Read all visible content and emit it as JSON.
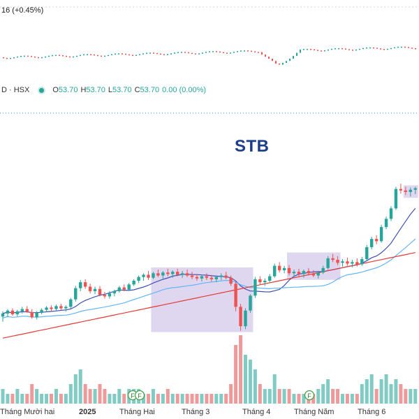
{
  "top_index": {
    "change_text": "16 (+0.45%)"
  },
  "legend": {
    "symbol": "D · HSX",
    "o_label": "O",
    "o_value": "53.70",
    "h_label": "H",
    "h_value": "53.70",
    "l_label": "L",
    "l_value": "53.70",
    "c_label": "C",
    "c_value": "53.70",
    "change": "0.00 (0.00%)"
  },
  "chart_data": {
    "type": "candlestick",
    "title": "STB",
    "x_tick_labels": [
      "Tháng Mười hai",
      "2025",
      "Tháng Hai",
      "Tháng 3",
      "Tháng 4",
      "Tháng Năm",
      "Tháng 6"
    ],
    "event_markers": [
      "F",
      "F",
      "F"
    ],
    "colors": {
      "up": "#26a69a",
      "down": "#ef5350",
      "ma_short": "#3f51b5",
      "ma_mid": "#64b5f6",
      "ma_long": "#e53935",
      "highlight": "#d1c4e9"
    },
    "price_range_estimate": [
      31,
      56
    ],
    "candles": [
      {
        "o": 36.5,
        "h": 37.2,
        "l": 35.8,
        "c": 36.9
      },
      {
        "o": 36.9,
        "h": 37.5,
        "l": 36.4,
        "c": 37.3
      },
      {
        "o": 37.3,
        "h": 37.6,
        "l": 36.6,
        "c": 36.8
      },
      {
        "o": 36.8,
        "h": 37.4,
        "l": 36.5,
        "c": 37.2
      },
      {
        "o": 37.2,
        "h": 37.8,
        "l": 36.9,
        "c": 37.5
      },
      {
        "o": 37.5,
        "h": 37.9,
        "l": 37.0,
        "c": 37.1
      },
      {
        "o": 37.1,
        "h": 37.5,
        "l": 36.2,
        "c": 36.4
      },
      {
        "o": 36.4,
        "h": 37.2,
        "l": 36.1,
        "c": 37.0
      },
      {
        "o": 37.0,
        "h": 37.6,
        "l": 36.8,
        "c": 37.4
      },
      {
        "o": 37.4,
        "h": 37.9,
        "l": 37.1,
        "c": 37.7
      },
      {
        "o": 37.7,
        "h": 38.0,
        "l": 37.2,
        "c": 37.5
      },
      {
        "o": 37.5,
        "h": 38.1,
        "l": 37.3,
        "c": 37.9
      },
      {
        "o": 37.9,
        "h": 38.2,
        "l": 37.4,
        "c": 37.6
      },
      {
        "o": 37.6,
        "h": 38.0,
        "l": 37.2,
        "c": 37.8
      },
      {
        "o": 37.8,
        "h": 39.0,
        "l": 37.6,
        "c": 38.8
      },
      {
        "o": 38.8,
        "h": 40.6,
        "l": 38.5,
        "c": 40.3
      },
      {
        "o": 40.3,
        "h": 41.4,
        "l": 39.9,
        "c": 41.1
      },
      {
        "o": 41.1,
        "h": 41.5,
        "l": 40.2,
        "c": 40.5
      },
      {
        "o": 40.5,
        "h": 40.9,
        "l": 39.6,
        "c": 39.9
      },
      {
        "o": 39.9,
        "h": 40.5,
        "l": 39.5,
        "c": 40.2
      },
      {
        "o": 40.2,
        "h": 40.6,
        "l": 39.2,
        "c": 39.4
      },
      {
        "o": 39.4,
        "h": 39.8,
        "l": 38.9,
        "c": 39.2
      },
      {
        "o": 39.2,
        "h": 39.9,
        "l": 38.9,
        "c": 39.6
      },
      {
        "o": 39.6,
        "h": 40.1,
        "l": 39.2,
        "c": 39.9
      },
      {
        "o": 39.9,
        "h": 40.6,
        "l": 39.7,
        "c": 40.4
      },
      {
        "o": 40.4,
        "h": 40.8,
        "l": 39.9,
        "c": 40.1
      },
      {
        "o": 40.1,
        "h": 41.0,
        "l": 40.0,
        "c": 40.8
      },
      {
        "o": 40.8,
        "h": 41.5,
        "l": 40.6,
        "c": 41.3
      },
      {
        "o": 41.3,
        "h": 42.0,
        "l": 41.0,
        "c": 41.8
      },
      {
        "o": 41.8,
        "h": 42.3,
        "l": 41.3,
        "c": 42.1
      },
      {
        "o": 42.1,
        "h": 42.6,
        "l": 41.4,
        "c": 41.7
      },
      {
        "o": 41.7,
        "h": 42.5,
        "l": 41.5,
        "c": 42.3
      },
      {
        "o": 42.3,
        "h": 42.8,
        "l": 41.8,
        "c": 42.0
      },
      {
        "o": 42.0,
        "h": 42.6,
        "l": 41.6,
        "c": 42.4
      },
      {
        "o": 42.4,
        "h": 42.9,
        "l": 41.9,
        "c": 42.2
      },
      {
        "o": 42.2,
        "h": 42.7,
        "l": 41.7,
        "c": 42.5
      },
      {
        "o": 42.5,
        "h": 42.9,
        "l": 41.9,
        "c": 42.1
      },
      {
        "o": 42.1,
        "h": 42.6,
        "l": 41.7,
        "c": 42.3
      },
      {
        "o": 42.3,
        "h": 42.8,
        "l": 41.8,
        "c": 42.0
      },
      {
        "o": 42.0,
        "h": 42.5,
        "l": 41.5,
        "c": 41.8
      },
      {
        "o": 41.8,
        "h": 42.2,
        "l": 41.3,
        "c": 41.6
      },
      {
        "o": 41.6,
        "h": 42.0,
        "l": 41.2,
        "c": 41.9
      },
      {
        "o": 41.9,
        "h": 42.3,
        "l": 41.4,
        "c": 41.7
      },
      {
        "o": 41.7,
        "h": 42.1,
        "l": 41.2,
        "c": 41.5
      },
      {
        "o": 41.5,
        "h": 42.0,
        "l": 41.1,
        "c": 41.8
      },
      {
        "o": 41.8,
        "h": 42.3,
        "l": 41.4,
        "c": 42.0
      },
      {
        "o": 42.0,
        "h": 42.5,
        "l": 41.5,
        "c": 41.7
      },
      {
        "o": 41.7,
        "h": 42.0,
        "l": 40.6,
        "c": 40.9
      },
      {
        "o": 40.9,
        "h": 41.2,
        "l": 37.2,
        "c": 37.8
      },
      {
        "o": 37.8,
        "h": 38.2,
        "l": 34.6,
        "c": 35.2
      },
      {
        "o": 35.2,
        "h": 37.6,
        "l": 34.8,
        "c": 37.3
      },
      {
        "o": 37.3,
        "h": 39.5,
        "l": 37.0,
        "c": 39.3
      },
      {
        "o": 39.3,
        "h": 41.8,
        "l": 39.0,
        "c": 41.5
      },
      {
        "o": 41.5,
        "h": 41.9,
        "l": 40.8,
        "c": 41.1
      },
      {
        "o": 41.1,
        "h": 41.6,
        "l": 40.6,
        "c": 41.3
      },
      {
        "o": 41.3,
        "h": 42.2,
        "l": 41.0,
        "c": 41.9
      },
      {
        "o": 41.9,
        "h": 43.6,
        "l": 41.7,
        "c": 43.3
      },
      {
        "o": 43.3,
        "h": 43.8,
        "l": 42.4,
        "c": 42.7
      },
      {
        "o": 42.7,
        "h": 43.3,
        "l": 42.3,
        "c": 43.0
      },
      {
        "o": 43.0,
        "h": 43.4,
        "l": 42.0,
        "c": 42.3
      },
      {
        "o": 42.3,
        "h": 42.8,
        "l": 41.8,
        "c": 42.5
      },
      {
        "o": 42.5,
        "h": 42.9,
        "l": 41.9,
        "c": 42.2
      },
      {
        "o": 42.2,
        "h": 42.8,
        "l": 41.7,
        "c": 42.6
      },
      {
        "o": 42.6,
        "h": 43.0,
        "l": 42.0,
        "c": 42.3
      },
      {
        "o": 42.3,
        "h": 42.7,
        "l": 41.8,
        "c": 42.0
      },
      {
        "o": 42.0,
        "h": 42.6,
        "l": 41.6,
        "c": 42.4
      },
      {
        "o": 42.4,
        "h": 43.3,
        "l": 42.2,
        "c": 43.0
      },
      {
        "o": 43.0,
        "h": 44.6,
        "l": 42.8,
        "c": 44.3
      },
      {
        "o": 44.3,
        "h": 44.9,
        "l": 43.8,
        "c": 44.1
      },
      {
        "o": 44.1,
        "h": 44.6,
        "l": 43.4,
        "c": 43.7
      },
      {
        "o": 43.7,
        "h": 44.2,
        "l": 43.2,
        "c": 43.9
      },
      {
        "o": 43.9,
        "h": 44.4,
        "l": 43.3,
        "c": 43.6
      },
      {
        "o": 43.6,
        "h": 44.1,
        "l": 43.1,
        "c": 43.8
      },
      {
        "o": 43.8,
        "h": 44.3,
        "l": 43.2,
        "c": 43.5
      },
      {
        "o": 43.5,
        "h": 44.5,
        "l": 43.3,
        "c": 44.2
      },
      {
        "o": 44.2,
        "h": 46.1,
        "l": 44.0,
        "c": 45.8
      },
      {
        "o": 45.8,
        "h": 47.2,
        "l": 45.5,
        "c": 46.9
      },
      {
        "o": 46.9,
        "h": 47.4,
        "l": 46.2,
        "c": 46.6
      },
      {
        "o": 46.6,
        "h": 48.8,
        "l": 46.4,
        "c": 48.5
      },
      {
        "o": 48.5,
        "h": 49.9,
        "l": 48.2,
        "c": 49.6
      },
      {
        "o": 49.6,
        "h": 51.3,
        "l": 49.3,
        "c": 51.0
      },
      {
        "o": 51.0,
        "h": 53.9,
        "l": 50.8,
        "c": 53.6
      },
      {
        "o": 53.6,
        "h": 54.3,
        "l": 53.0,
        "c": 53.4
      },
      {
        "o": 53.4,
        "h": 53.9,
        "l": 52.8,
        "c": 53.2
      },
      {
        "o": 53.2,
        "h": 53.8,
        "l": 52.6,
        "c": 53.5
      },
      {
        "o": 53.5,
        "h": 53.9,
        "l": 52.9,
        "c": 53.7
      }
    ],
    "volumes": [
      3,
      2,
      2,
      3,
      2,
      2,
      4,
      3,
      2,
      2,
      2,
      3,
      2,
      2,
      4,
      6,
      7,
      4,
      3,
      3,
      4,
      3,
      2,
      2,
      3,
      2,
      3,
      3,
      3,
      2,
      2,
      3,
      2,
      2,
      3,
      2,
      2,
      2,
      2,
      2,
      2,
      2,
      2,
      2,
      2,
      2,
      2,
      4,
      12,
      14,
      10,
      9,
      7,
      4,
      3,
      3,
      6,
      3,
      3,
      3,
      2,
      2,
      2,
      2,
      2,
      3,
      4,
      5,
      3,
      3,
      2,
      2,
      2,
      2,
      4,
      5,
      6,
      3,
      5,
      6,
      4,
      5,
      4,
      3,
      3,
      3
    ]
  }
}
